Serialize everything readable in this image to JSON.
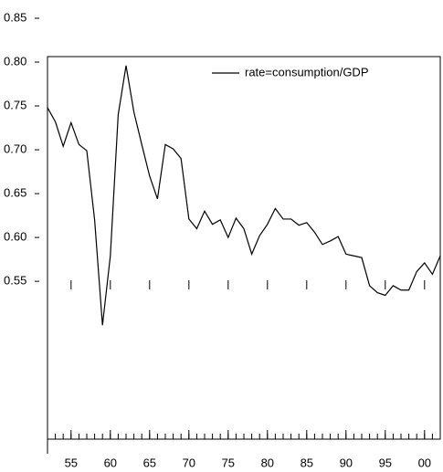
{
  "chart_data": {
    "type": "line",
    "x": [
      1952,
      1953,
      1954,
      1955,
      1956,
      1957,
      1958,
      1959,
      1960,
      1961,
      1962,
      1963,
      1964,
      1965,
      1966,
      1967,
      1968,
      1969,
      1970,
      1971,
      1972,
      1973,
      1974,
      1975,
      1976,
      1977,
      1978,
      1979,
      1980,
      1981,
      1982,
      1983,
      1984,
      1985,
      1986,
      1987,
      1988,
      1989,
      1990,
      1991,
      1992,
      1993,
      1994,
      1995,
      1996,
      1997,
      1998,
      1999,
      2000,
      2001,
      2002
    ],
    "series": [
      {
        "name": "rate=consumption/GDP",
        "color": "#000000",
        "values": [
          0.748,
          0.732,
          0.704,
          0.731,
          0.706,
          0.699,
          0.62,
          0.5,
          0.579,
          0.74,
          0.796,
          0.743,
          0.706,
          0.67,
          0.644,
          0.706,
          0.701,
          0.69,
          0.621,
          0.61,
          0.63,
          0.615,
          0.62,
          0.6,
          0.622,
          0.61,
          0.581,
          0.602,
          0.615,
          0.633,
          0.621,
          0.621,
          0.614,
          0.617,
          0.606,
          0.592,
          0.596,
          0.601,
          0.581,
          0.579,
          0.577,
          0.545,
          0.537,
          0.534,
          0.545,
          0.54,
          0.54,
          0.561,
          0.571,
          0.558,
          0.579
        ]
      }
    ],
    "xlim": [
      1952,
      2002
    ],
    "xticks": [
      {
        "value": 1955,
        "label": "55"
      },
      {
        "value": 1960,
        "label": "60"
      },
      {
        "value": 1965,
        "label": "65"
      },
      {
        "value": 1970,
        "label": "70"
      },
      {
        "value": 1975,
        "label": "75"
      },
      {
        "value": 1980,
        "label": "80"
      },
      {
        "value": 1985,
        "label": "85"
      },
      {
        "value": 1990,
        "label": "90"
      },
      {
        "value": 1995,
        "label": "95"
      },
      {
        "value": 2000,
        "label": "00"
      }
    ],
    "x_minor_ticks": [
      1952,
      1953,
      1954,
      1955,
      1956,
      1957,
      1958,
      1959,
      1960,
      1961,
      1962,
      1963,
      1964,
      1965,
      1966,
      1967,
      1968,
      1969,
      1970,
      1971,
      1972,
      1973,
      1974,
      1975,
      1976,
      1977,
      1978,
      1979,
      1980,
      1981,
      1982,
      1983,
      1984,
      1985,
      1986,
      1987,
      1988,
      1989,
      1990,
      1991,
      1992,
      1993,
      1994,
      1995,
      1996,
      1997,
      1998,
      1999,
      2000,
      2001,
      2002
    ],
    "ylim": [
      0.37,
      0.85
    ],
    "yticks": [
      0.55,
      {
        "value": 0.6,
        "label": "0.60"
      },
      0.65,
      {
        "value": 0.7,
        "label": "0.70"
      },
      0.75,
      {
        "value": 0.8,
        "label": "0.80"
      },
      0.85
    ],
    "legend": "upper right"
  }
}
